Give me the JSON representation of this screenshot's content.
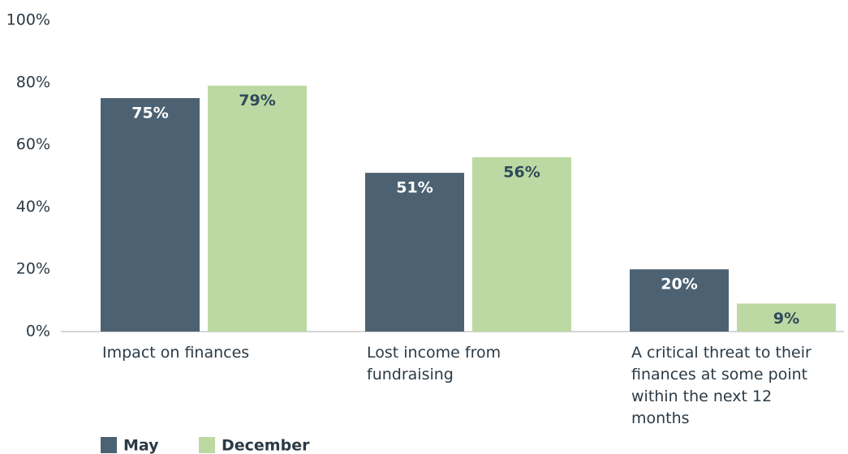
{
  "chart_data": {
    "type": "bar",
    "categories": [
      "Impact on finances",
      "Lost income from fundraising",
      "A critical threat to their finances at some point within the next 12 months"
    ],
    "series": [
      {
        "name": "May",
        "color": "#4c6272",
        "values": [
          75,
          51,
          20
        ],
        "value_labels": [
          "75%",
          "51%",
          "20%"
        ]
      },
      {
        "name": "December",
        "color": "#bcd9a3",
        "values": [
          79,
          56,
          9
        ],
        "value_labels": [
          "79%",
          "56%",
          "9%"
        ]
      }
    ],
    "ylim": [
      0,
      100
    ],
    "yticks": [
      {
        "value": 0,
        "label": "0%"
      },
      {
        "value": 20,
        "label": "20%"
      },
      {
        "value": 40,
        "label": "40%"
      },
      {
        "value": 60,
        "label": "60%"
      },
      {
        "value": 80,
        "label": "80%"
      },
      {
        "value": 100,
        "label": "100%"
      }
    ],
    "legend": "bottom-left"
  }
}
